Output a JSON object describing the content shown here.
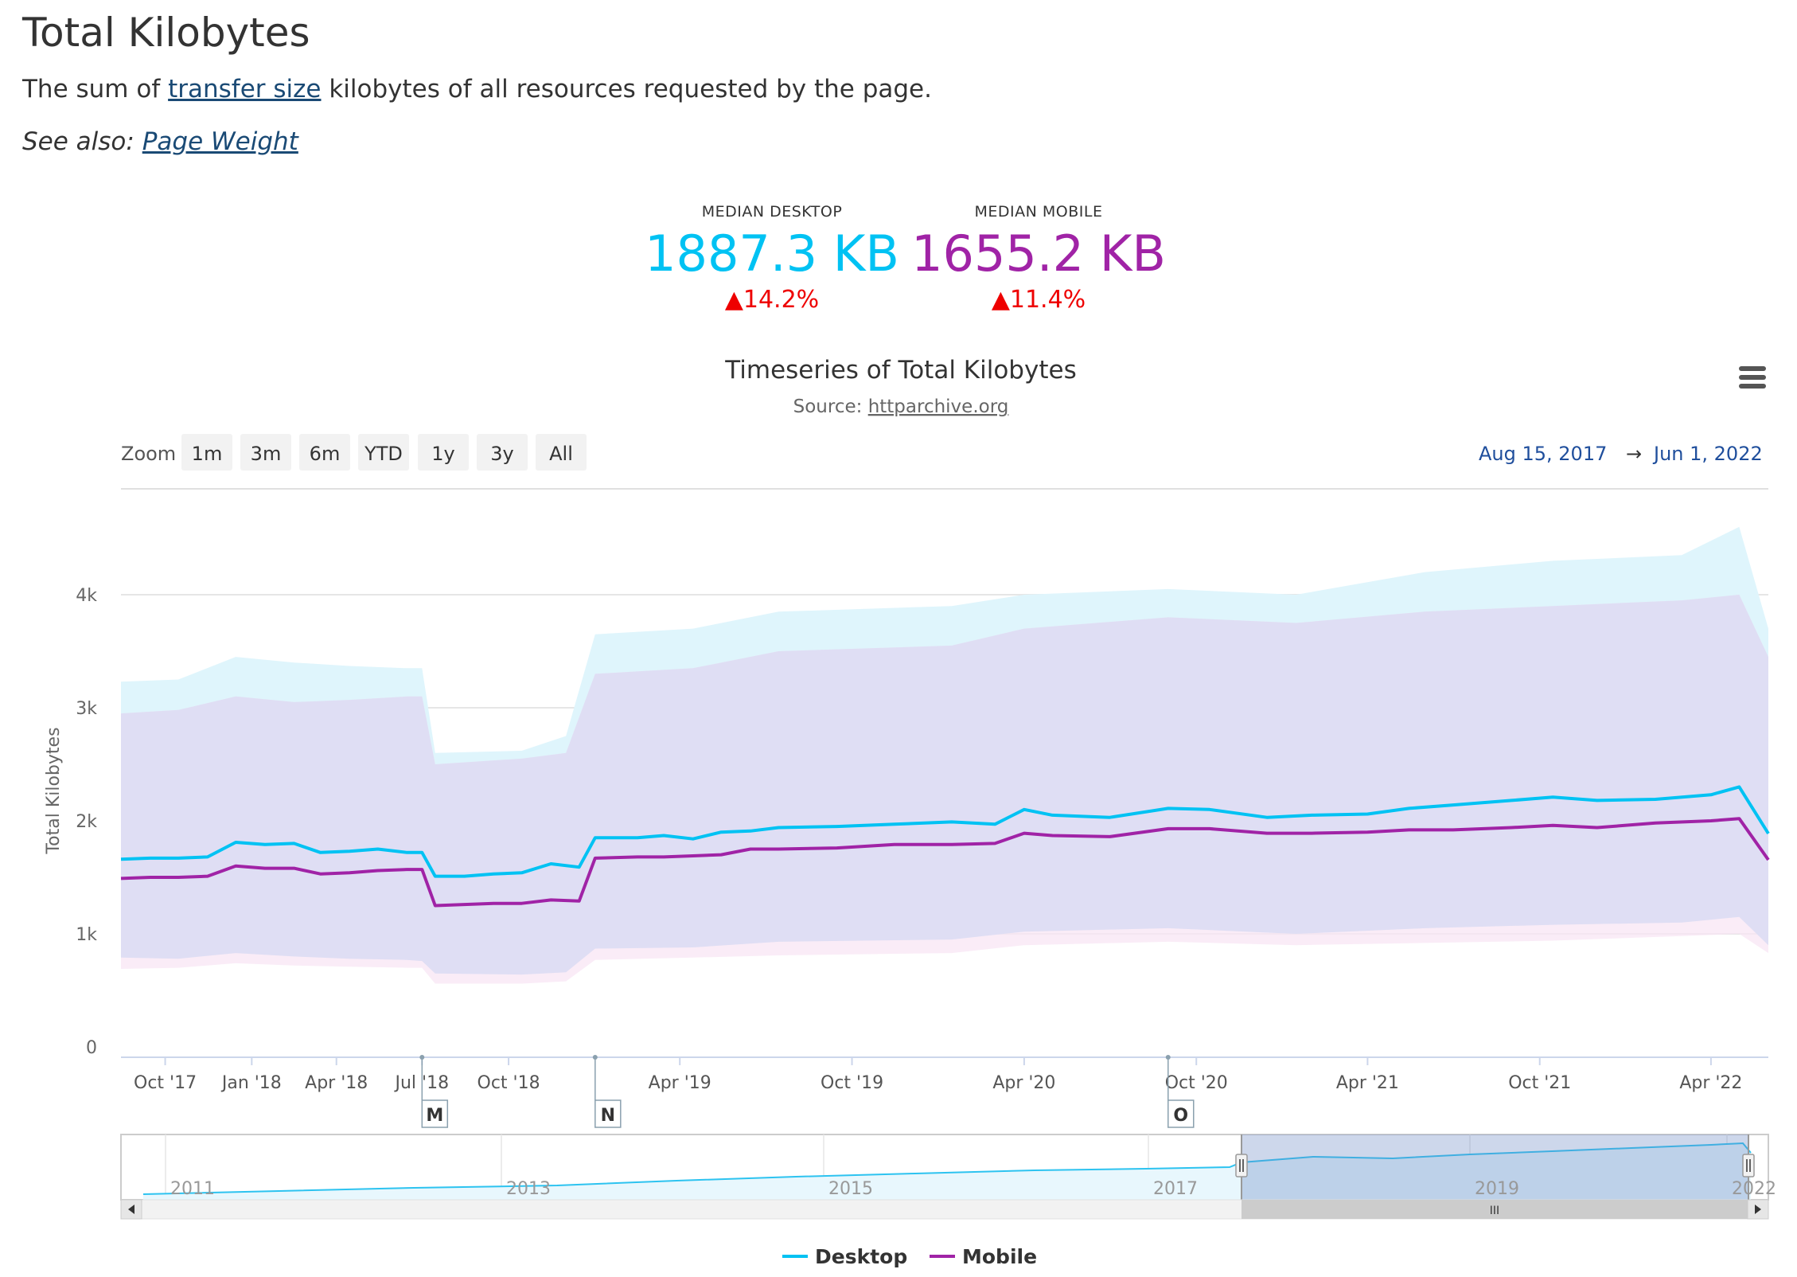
{
  "page": {
    "title": "Total Kilobytes",
    "desc_prefix": "The sum of",
    "desc_link": "transfer size",
    "desc_suffix": "kilobytes of all resources requested by the page.",
    "see_also_prefix": "See also:",
    "see_also_link": "Page Weight"
  },
  "metrics": {
    "desktop": {
      "label": "MEDIAN DESKTOP",
      "value": "1887.3 KB",
      "change": "▲14.2%",
      "color": "#00c2f3"
    },
    "mobile": {
      "label": "MEDIAN MOBILE",
      "value": "1655.2 KB",
      "change": "▲11.4%",
      "color": "#a023a6"
    }
  },
  "chart": {
    "title": "Timeseries of Total Kilobytes",
    "source_prefix": "Source:",
    "source_link": "httparchive.org",
    "menu_icon": "hamburger-menu-icon",
    "zoom_label": "Zoom",
    "zoom_buttons": [
      "1m",
      "3m",
      "6m",
      "YTD",
      "1y",
      "3y",
      "All"
    ],
    "range_from": "Aug 15, 2017",
    "range_arrow": "→",
    "range_to": "Jun 1, 2022",
    "flags": [
      "M",
      "N",
      "O"
    ],
    "navigator_years": [
      "2011",
      "2013",
      "2015",
      "2017",
      "2019",
      "2022"
    ],
    "navigator_scroll_grip": "III"
  },
  "chart_data": {
    "type": "line",
    "ylabel": "Total Kilobytes",
    "yticks": [
      "0",
      "1k",
      "2k",
      "3k",
      "4k"
    ],
    "ylim": [
      0,
      4500
    ],
    "xticks": [
      "Oct '17",
      "Jan '18",
      "Apr '18",
      "Jul '18",
      "Oct '18",
      "Apr '19",
      "Oct '19",
      "Apr '20",
      "Oct '20",
      "Apr '21",
      "Oct '21",
      "Apr '22"
    ],
    "legend": [
      "Desktop",
      "Mobile"
    ],
    "legend_position": "bottom-center",
    "grid": true,
    "series": [
      {
        "name": "Desktop",
        "color": "#00c2f3",
        "points": [
          [
            "2017-08-15",
            1660
          ],
          [
            "2017-09-15",
            1670
          ],
          [
            "2017-10-15",
            1670
          ],
          [
            "2017-11-15",
            1680
          ],
          [
            "2017-12-15",
            1810
          ],
          [
            "2018-01-15",
            1790
          ],
          [
            "2018-02-15",
            1800
          ],
          [
            "2018-03-15",
            1720
          ],
          [
            "2018-04-15",
            1730
          ],
          [
            "2018-05-15",
            1750
          ],
          [
            "2018-06-15",
            1720
          ],
          [
            "2018-07-01",
            1720
          ],
          [
            "2018-07-15",
            1510
          ],
          [
            "2018-08-15",
            1510
          ],
          [
            "2018-09-15",
            1530
          ],
          [
            "2018-10-15",
            1540
          ],
          [
            "2018-11-15",
            1620
          ],
          [
            "2018-12-15",
            1590
          ],
          [
            "2019-01-01",
            1850
          ],
          [
            "2019-02-15",
            1850
          ],
          [
            "2019-03-15",
            1870
          ],
          [
            "2019-04-15",
            1840
          ],
          [
            "2019-05-15",
            1900
          ],
          [
            "2019-06-15",
            1910
          ],
          [
            "2019-07-15",
            1940
          ],
          [
            "2019-09-15",
            1950
          ],
          [
            "2019-11-15",
            1970
          ],
          [
            "2020-01-15",
            1990
          ],
          [
            "2020-03-01",
            1970
          ],
          [
            "2020-04-01",
            2100
          ],
          [
            "2020-05-01",
            2050
          ],
          [
            "2020-07-01",
            2030
          ],
          [
            "2020-09-01",
            2110
          ],
          [
            "2020-10-15",
            2100
          ],
          [
            "2020-12-15",
            2030
          ],
          [
            "2021-02-01",
            2050
          ],
          [
            "2021-04-01",
            2060
          ],
          [
            "2021-05-15",
            2110
          ],
          [
            "2021-07-01",
            2140
          ],
          [
            "2021-09-01",
            2180
          ],
          [
            "2021-10-15",
            2210
          ],
          [
            "2021-12-01",
            2180
          ],
          [
            "2022-02-01",
            2190
          ],
          [
            "2022-04-01",
            2230
          ],
          [
            "2022-05-01",
            2300
          ],
          [
            "2022-06-01",
            1887
          ]
        ]
      },
      {
        "name": "Mobile",
        "color": "#a023a6",
        "points": [
          [
            "2017-08-15",
            1490
          ],
          [
            "2017-09-15",
            1500
          ],
          [
            "2017-10-15",
            1500
          ],
          [
            "2017-11-15",
            1510
          ],
          [
            "2017-12-15",
            1600
          ],
          [
            "2018-01-15",
            1580
          ],
          [
            "2018-02-15",
            1580
          ],
          [
            "2018-03-15",
            1530
          ],
          [
            "2018-04-15",
            1540
          ],
          [
            "2018-05-15",
            1560
          ],
          [
            "2018-06-15",
            1570
          ],
          [
            "2018-07-01",
            1570
          ],
          [
            "2018-07-15",
            1250
          ],
          [
            "2018-08-15",
            1260
          ],
          [
            "2018-09-15",
            1270
          ],
          [
            "2018-10-15",
            1270
          ],
          [
            "2018-11-15",
            1300
          ],
          [
            "2018-12-15",
            1290
          ],
          [
            "2019-01-01",
            1670
          ],
          [
            "2019-02-15",
            1680
          ],
          [
            "2019-03-15",
            1680
          ],
          [
            "2019-04-15",
            1690
          ],
          [
            "2019-05-15",
            1700
          ],
          [
            "2019-06-15",
            1750
          ],
          [
            "2019-07-15",
            1750
          ],
          [
            "2019-09-15",
            1760
          ],
          [
            "2019-11-15",
            1790
          ],
          [
            "2020-01-15",
            1790
          ],
          [
            "2020-03-01",
            1800
          ],
          [
            "2020-04-01",
            1890
          ],
          [
            "2020-05-01",
            1870
          ],
          [
            "2020-07-01",
            1860
          ],
          [
            "2020-09-01",
            1930
          ],
          [
            "2020-10-15",
            1930
          ],
          [
            "2020-12-15",
            1890
          ],
          [
            "2021-02-01",
            1890
          ],
          [
            "2021-04-01",
            1900
          ],
          [
            "2021-05-15",
            1920
          ],
          [
            "2021-07-01",
            1920
          ],
          [
            "2021-09-01",
            1940
          ],
          [
            "2021-10-15",
            1960
          ],
          [
            "2021-12-01",
            1940
          ],
          [
            "2022-02-01",
            1980
          ],
          [
            "2022-04-01",
            2000
          ],
          [
            "2022-05-01",
            2020
          ],
          [
            "2022-06-01",
            1655
          ]
        ]
      }
    ],
    "bands": [
      {
        "name": "Desktop range",
        "color": "#dff5fc",
        "points": [
          [
            "2017-08-15",
            790,
            3230
          ],
          [
            "2017-10-15",
            780,
            3250
          ],
          [
            "2017-12-15",
            830,
            3450
          ],
          [
            "2018-02-15",
            800,
            3400
          ],
          [
            "2018-04-15",
            780,
            3370
          ],
          [
            "2018-06-15",
            770,
            3350
          ],
          [
            "2018-07-01",
            760,
            3350
          ],
          [
            "2018-07-15",
            650,
            2600
          ],
          [
            "2018-10-15",
            640,
            2620
          ],
          [
            "2018-12-01",
            660,
            2750
          ],
          [
            "2019-01-01",
            870,
            3650
          ],
          [
            "2019-04-15",
            880,
            3700
          ],
          [
            "2019-07-15",
            930,
            3850
          ],
          [
            "2020-01-15",
            950,
            3900
          ],
          [
            "2020-04-01",
            1020,
            4000
          ],
          [
            "2020-09-01",
            1050,
            4050
          ],
          [
            "2021-01-15",
            1000,
            4000
          ],
          [
            "2021-06-01",
            1050,
            4200
          ],
          [
            "2021-10-15",
            1080,
            4300
          ],
          [
            "2022-03-01",
            1100,
            4350
          ],
          [
            "2022-05-01",
            1150,
            4600
          ],
          [
            "2022-06-01",
            900,
            3700
          ]
        ]
      },
      {
        "name": "Mobile range",
        "color": "#f8e6f4",
        "points": [
          [
            "2017-08-15",
            690,
            2950
          ],
          [
            "2017-10-15",
            700,
            2980
          ],
          [
            "2017-12-15",
            740,
            3100
          ],
          [
            "2018-02-15",
            720,
            3050
          ],
          [
            "2018-04-15",
            710,
            3070
          ],
          [
            "2018-06-15",
            700,
            3100
          ],
          [
            "2018-07-01",
            700,
            3100
          ],
          [
            "2018-07-15",
            560,
            2500
          ],
          [
            "2018-10-15",
            560,
            2550
          ],
          [
            "2018-12-01",
            580,
            2600
          ],
          [
            "2019-01-01",
            770,
            3300
          ],
          [
            "2019-04-15",
            790,
            3350
          ],
          [
            "2019-07-15",
            810,
            3500
          ],
          [
            "2020-01-15",
            830,
            3550
          ],
          [
            "2020-04-01",
            900,
            3700
          ],
          [
            "2020-09-01",
            930,
            3800
          ],
          [
            "2021-01-15",
            900,
            3750
          ],
          [
            "2021-06-01",
            920,
            3850
          ],
          [
            "2021-10-15",
            940,
            3900
          ],
          [
            "2022-03-01",
            980,
            3950
          ],
          [
            "2022-05-01",
            1000,
            4000
          ],
          [
            "2022-06-01",
            830,
            3450
          ]
        ]
      }
    ]
  }
}
